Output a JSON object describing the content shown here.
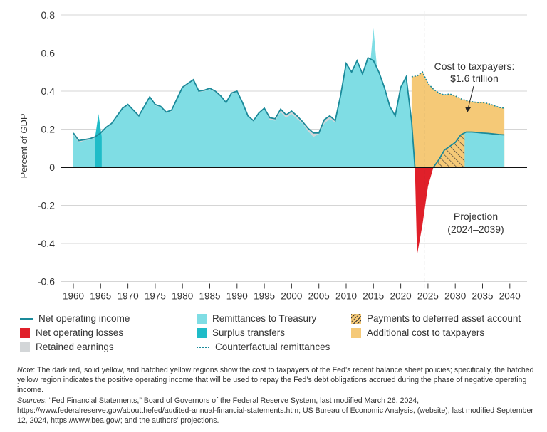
{
  "chart_data": {
    "type": "area",
    "ylabel": "Percent of GDP",
    "xlabel": "",
    "ylim": [
      -0.6,
      0.8
    ],
    "xlim": [
      1958,
      2042
    ],
    "yticks": [
      "0.8",
      "0.6",
      "0.4",
      "0.2",
      "0",
      "-0.2",
      "-0.4",
      "-0.6"
    ],
    "ytick_values": [
      0.8,
      0.6,
      0.4,
      0.2,
      0,
      -0.2,
      -0.4,
      -0.6
    ],
    "xticks": [
      "1960",
      "1965",
      "1970",
      "1975",
      "1980",
      "1985",
      "1990",
      "1995",
      "2000",
      "2005",
      "2010",
      "2015",
      "2020",
      "2025",
      "2030",
      "2035",
      "2040"
    ],
    "grid": "horizontal",
    "projection_start": 2024.3,
    "years": [
      1960,
      1961,
      1962,
      1963,
      1964,
      1965,
      1966,
      1967,
      1968,
      1969,
      1970,
      1971,
      1972,
      1973,
      1974,
      1975,
      1976,
      1977,
      1978,
      1979,
      1980,
      1981,
      1982,
      1983,
      1984,
      1985,
      1986,
      1987,
      1988,
      1989,
      1990,
      1991,
      1992,
      1993,
      1994,
      1995,
      1996,
      1997,
      1998,
      1999,
      2000,
      2001,
      2002,
      2003,
      2004,
      2005,
      2006,
      2007,
      2008,
      2009,
      2010,
      2011,
      2012,
      2013,
      2014,
      2015,
      2016,
      2017,
      2018,
      2019,
      2020,
      2021,
      2022,
      2023,
      2024,
      2025,
      2026,
      2027,
      2028,
      2029,
      2030,
      2031,
      2032,
      2033,
      2034,
      2035,
      2036,
      2037,
      2038,
      2039
    ],
    "series": [
      {
        "name": "Net operating income",
        "values": [
          0.18,
          0.14,
          0.145,
          0.15,
          0.16,
          0.18,
          0.21,
          0.23,
          0.27,
          0.31,
          0.33,
          0.3,
          0.27,
          0.32,
          0.37,
          0.33,
          0.32,
          0.29,
          0.3,
          0.36,
          0.42,
          0.44,
          0.46,
          0.4,
          0.405,
          0.415,
          0.4,
          0.375,
          0.34,
          0.39,
          0.4,
          0.34,
          0.27,
          0.245,
          0.285,
          0.31,
          0.26,
          0.255,
          0.305,
          0.275,
          0.295,
          0.27,
          0.24,
          0.205,
          0.18,
          0.18,
          0.25,
          0.27,
          0.245,
          0.38,
          0.545,
          0.5,
          0.56,
          0.49,
          0.575,
          0.56,
          0.5,
          0.42,
          0.32,
          0.27,
          0.42,
          0.475,
          0.24,
          -0.46,
          -0.3,
          -0.1,
          0.0,
          0.04,
          0.09,
          0.11,
          0.13,
          0.17,
          0.185,
          0.185,
          0.183,
          0.18,
          0.178,
          0.175,
          0.172,
          0.17
        ]
      },
      {
        "name": "Remittances to Treasury",
        "values": [
          0.17,
          0.13,
          0.14,
          0.145,
          0.155,
          0.175,
          0.205,
          0.225,
          0.265,
          0.305,
          0.325,
          0.295,
          0.265,
          0.315,
          0.365,
          0.325,
          0.315,
          0.285,
          0.295,
          0.355,
          0.415,
          0.435,
          0.455,
          0.395,
          0.4,
          0.41,
          0.395,
          0.37,
          0.335,
          0.385,
          0.395,
          0.335,
          0.265,
          0.24,
          0.28,
          0.305,
          0.25,
          0.245,
          0.29,
          0.26,
          0.28,
          0.255,
          0.23,
          0.19,
          0.16,
          0.175,
          0.23,
          0.255,
          0.235,
          0.375,
          0.54,
          0.495,
          0.555,
          0.485,
          0.57,
          0.555,
          0.495,
          0.415,
          0.315,
          0.265,
          0.415,
          0.47,
          0.24,
          0,
          0,
          0,
          0,
          0,
          0,
          0,
          0,
          0,
          0.185,
          0.185,
          0.183,
          0.18,
          0.178,
          0.175,
          0.172,
          0.17
        ]
      },
      {
        "name": "Surplus transfers",
        "spikes": [
          {
            "year": 1964.6,
            "value": 0.28
          },
          {
            "year": 2015,
            "value": 0.73
          }
        ]
      },
      {
        "name": "Retained earnings"
      },
      {
        "name": "Counterfactual remittances",
        "years": [
          2022,
          2023,
          2024,
          2025,
          2026,
          2027,
          2028,
          2029,
          2030,
          2031,
          2032,
          2033,
          2034,
          2035,
          2036,
          2037,
          2038,
          2039
        ],
        "values": [
          0.475,
          0.48,
          0.5,
          0.44,
          0.41,
          0.39,
          0.38,
          0.385,
          0.375,
          0.36,
          0.35,
          0.345,
          0.34,
          0.34,
          0.335,
          0.325,
          0.315,
          0.31
        ]
      },
      {
        "name": "Net operating losses"
      },
      {
        "name": "Payments to deferred asset account",
        "range": [
          2026.5,
          2031.7
        ]
      },
      {
        "name": "Additional cost to taxpayers"
      }
    ],
    "annotations": [
      "Cost to taxpayers:",
      "$1.6 trillion",
      "Projection",
      "(2024–2039)"
    ],
    "colors": {
      "noi": "#1a8a9a",
      "remit": "#7fdde4",
      "surplus": "#1fbcc8",
      "loss": "#e0202a",
      "retained": "#d3d6d8",
      "counterfactual": "#1a8a9a",
      "cost": "#f5c977",
      "hatch": "#333333"
    }
  },
  "legend": [
    {
      "label": "Net operating income",
      "kind": "line"
    },
    {
      "label": "Net operating losses",
      "kind": "loss"
    },
    {
      "label": "Retained earnings",
      "kind": "retained"
    },
    {
      "label": "Remittances to Treasury",
      "kind": "remit"
    },
    {
      "label": "Surplus transfers",
      "kind": "surplus"
    },
    {
      "label": "Counterfactual remittances",
      "kind": "dotted"
    },
    {
      "label": "Payments to deferred asset account",
      "kind": "hatch"
    },
    {
      "label": "Additional cost to taxpayers",
      "kind": "cost"
    }
  ],
  "notes": {
    "note_label": "Note",
    "note_text": ": The dark red, solid yellow, and hatched yellow regions show the cost to taxpayers of the Fed’s recent balance sheet policies; specifically, the hatched yellow region indicates the positive operating income that will be used to repay the Fed’s debt obligations accrued during the phase of negative operating income.",
    "sources_label": "Sources",
    "sources_text": ": “Fed Financial Statements,” Board of Governors of the Federal Reserve System, last modified March 26, 2024, https://www.federalreserve.gov/aboutthefed/audited-annual-financial-statements.htm; US Bureau of Economic Analysis, (website), last modified September 12, 2024, https://www.bea.gov/; and the authors’ projections."
  }
}
